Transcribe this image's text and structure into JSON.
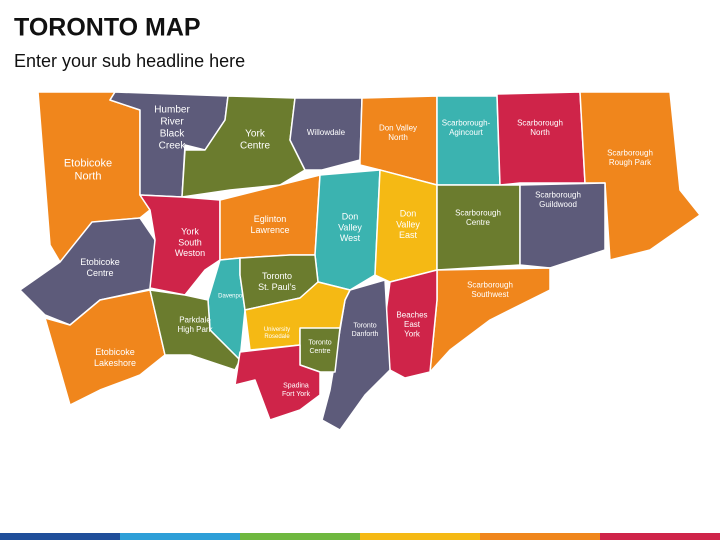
{
  "header": {
    "title": "TORONTO MAP",
    "subtitle": "Enter your sub headline here"
  },
  "regions": [
    {
      "label": [
        "Etobicoke",
        "North"
      ]
    },
    {
      "label": [
        "Humber",
        "River",
        "Black",
        "Creek"
      ]
    },
    {
      "label": [
        "York",
        "Centre"
      ]
    },
    {
      "label": [
        "Willowdale"
      ]
    },
    {
      "label": [
        "Don Valley",
        "North"
      ]
    },
    {
      "label": [
        "Scarborough-",
        "Agincourt"
      ]
    },
    {
      "label": [
        "Scarborough",
        "North"
      ]
    },
    {
      "label": [
        "Scarborough",
        "Rough Park"
      ]
    },
    {
      "label": [
        "Etobicoke",
        "Centre"
      ]
    },
    {
      "label": [
        "Etobicoke",
        "Lakeshore"
      ]
    },
    {
      "label": [
        "York",
        "South",
        "Weston"
      ]
    },
    {
      "label": [
        "Eglinton",
        "Lawrence"
      ]
    },
    {
      "label": [
        "Don",
        "Valley",
        "West"
      ]
    },
    {
      "label": [
        "Don",
        "Valley",
        "East"
      ]
    },
    {
      "label": [
        "Scarborough",
        "Centre"
      ]
    },
    {
      "label": [
        "Scarborough",
        "Guildwood"
      ]
    },
    {
      "label": [
        "Scarborough",
        "Southwest"
      ]
    },
    {
      "label": [
        "Beaches",
        "East",
        "York"
      ]
    },
    {
      "label": [
        "Toronto",
        "Danforth"
      ]
    },
    {
      "label": [
        "Davenport"
      ]
    },
    {
      "label": [
        "Toronto",
        "St. Paul’s"
      ]
    },
    {
      "label": [
        "Parkdale",
        "High Park"
      ]
    },
    {
      "label": [
        "University",
        "Rosedale"
      ]
    },
    {
      "label": [
        "Toronto",
        "Centre"
      ]
    },
    {
      "label": [
        "Spadina",
        "Fort York"
      ]
    }
  ]
}
